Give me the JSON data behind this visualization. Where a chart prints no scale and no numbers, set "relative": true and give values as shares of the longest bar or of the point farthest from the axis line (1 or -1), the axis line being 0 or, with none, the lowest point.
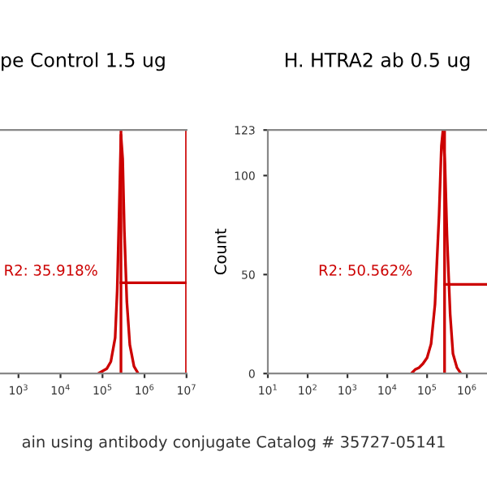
{
  "chart_data": [
    {
      "type": "line",
      "title": "pe Control 1.5 ug",
      "relative": true,
      "log": "x",
      "tick_labels": "x",
      "grid": false,
      "legend": false,
      "xlim": [
        363,
        10000000
      ],
      "xticks": [
        {
          "value": 1000,
          "label": "10$^{3}$"
        },
        {
          "value": 10000,
          "label": "10$^{4}$"
        },
        {
          "value": 100000,
          "label": "10$^{5}$"
        },
        {
          "value": 1000000,
          "label": "10$^{6}$"
        },
        {
          "value": 10000000,
          "label": "10$^{7}$"
        }
      ],
      "series": [
        {
          "color": "#cc0000",
          "x": [
            79000,
            126000,
            158000,
            200000,
            224000,
            251000,
            275000,
            302000,
            331000,
            380000,
            447000,
            562000,
            708000
          ],
          "values": [
            0,
            0.02,
            0.05,
            0.15,
            0.35,
            0.7,
            1.0,
            0.9,
            0.6,
            0.3,
            0.12,
            0.03,
            0
          ]
        },
        {
          "type": "line",
          "color": "#cc0000",
          "x": [
            275000,
            10000000
          ],
          "values": [
            0.38,
            0.38
          ]
        }
      ],
      "ref_lines": [
        {
          "axis": "x",
          "value": 275000,
          "color": "#cc0000"
        },
        {
          "axis": "x",
          "value": 10000000,
          "color": "#cc0000"
        }
      ],
      "annotations": [
        "R2: 35.918%",
        "ain using antibody conjugate Catalog # 35727-05141"
      ]
    },
    {
      "type": "line",
      "title": "H. HTRA2 ab 0.5 ug",
      "ylabel": "Count",
      "log": "x",
      "grid": false,
      "legend": false,
      "xlim": [
        10,
        3200000
      ],
      "ylim": [
        0,
        123
      ],
      "yticks": [
        0,
        50,
        100,
        123
      ],
      "xticks": [
        {
          "value": 10,
          "label": "10$^{1}$"
        },
        {
          "value": 100,
          "label": "10$^{2}$"
        },
        {
          "value": 1000,
          "label": "10$^{3}$"
        },
        {
          "value": 10000,
          "label": "10$^{4}$"
        },
        {
          "value": 100000,
          "label": "10$^{5}$"
        },
        {
          "value": 1000000,
          "label": "10$^{6}$"
        }
      ],
      "series": [
        {
          "color": "#cc0000",
          "x": [
            40000,
            50000,
            63000,
            79000,
            100000,
            126000,
            158000,
            200000,
            229000,
            251000,
            282000,
            316000,
            380000,
            447000,
            562000,
            708000
          ],
          "values": [
            0,
            2,
            3,
            5,
            8,
            15,
            35,
            80,
            115,
            123,
            105,
            70,
            30,
            10,
            3,
            0
          ]
        },
        {
          "type": "line",
          "color": "#cc0000",
          "x": [
            275000,
            3200000
          ],
          "values": [
            45,
            45
          ]
        }
      ],
      "ref_lines": [
        {
          "axis": "x",
          "value": 275000,
          "color": "#cc0000"
        }
      ],
      "annotations": [
        "R2: 50.562%"
      ]
    }
  ]
}
